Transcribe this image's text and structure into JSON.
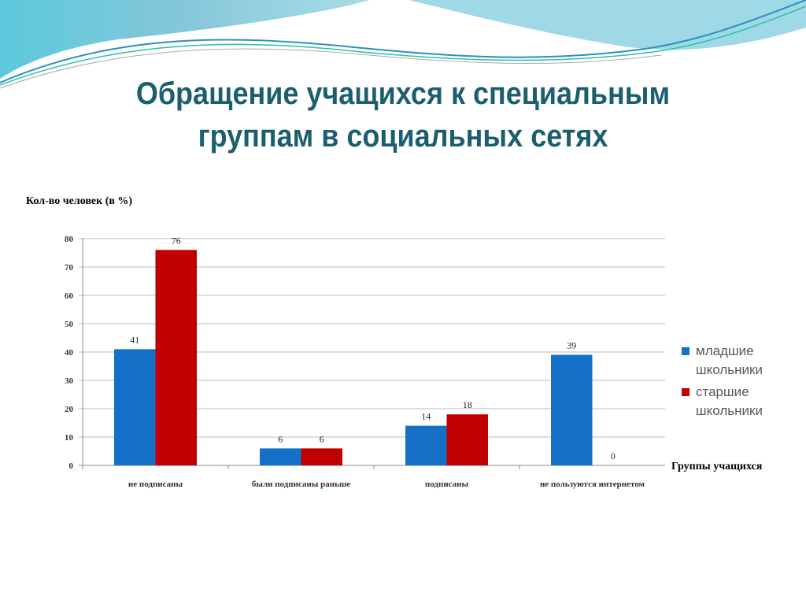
{
  "title_lines": [
    "Обращение учащихся к специальным",
    "группам в социальных сетях"
  ],
  "chart_data": {
    "type": "bar",
    "title": "Обращение учащихся к специальным группам в социальных сетях",
    "ylabel": "Кол-во человек (в %)",
    "xlabel": "Группы учащихся",
    "categories": [
      "не подписаны",
      "были подписаны раньше",
      "подписаны",
      "не пользуются интернетом"
    ],
    "series": [
      {
        "name": "младшие школьники",
        "color": "#1570c8",
        "values": [
          41,
          6,
          14,
          39
        ]
      },
      {
        "name": "старшие школьники",
        "color": "#c00000",
        "values": [
          76,
          6,
          18,
          0
        ]
      }
    ],
    "ylim": [
      0,
      80
    ],
    "yticks": [
      0,
      10,
      20,
      30,
      40,
      50,
      60,
      70,
      80
    ],
    "grid": true,
    "legend": "right"
  },
  "legend_lines": [
    [
      "младшие",
      "школьники"
    ],
    [
      "старшие",
      "школьники"
    ]
  ]
}
